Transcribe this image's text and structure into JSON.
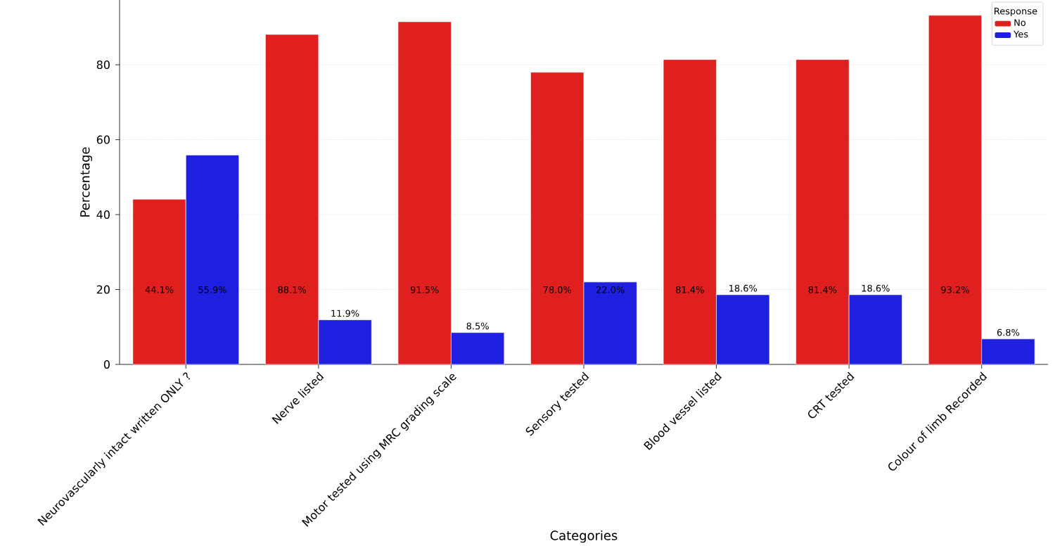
{
  "chart_data": {
    "type": "bar",
    "xlabel": "Categories",
    "ylabel": "Percentage",
    "legend_title": "Response",
    "categories": [
      "Neurovascularly intact written ONLY ?",
      "Nerve listed",
      "Motor tested using MRC grading scale",
      "Sensory tested",
      "Blood vessel listed",
      "CRT tested",
      "Colour of limb Recorded"
    ],
    "series": [
      {
        "name": "No",
        "color": "#e01f1f",
        "values": [
          44.1,
          88.1,
          91.5,
          78.0,
          81.4,
          81.4,
          93.2
        ],
        "value_labels": [
          "44.1%",
          "88.1%",
          "91.5%",
          "78.0%",
          "81.4%",
          "81.4%",
          "93.2%"
        ]
      },
      {
        "name": "Yes",
        "color": "#1f1fe0",
        "values": [
          55.9,
          11.9,
          8.5,
          22.0,
          18.6,
          18.6,
          6.8
        ],
        "value_labels": [
          "55.9%",
          "11.9%",
          "8.5%",
          "22.0%",
          "18.6%",
          "18.6%",
          "6.8%"
        ]
      }
    ],
    "ylim": [
      0,
      97.3
    ],
    "yticks": [
      0,
      20,
      40,
      60,
      80
    ],
    "grid": "y",
    "legend": "top right"
  }
}
